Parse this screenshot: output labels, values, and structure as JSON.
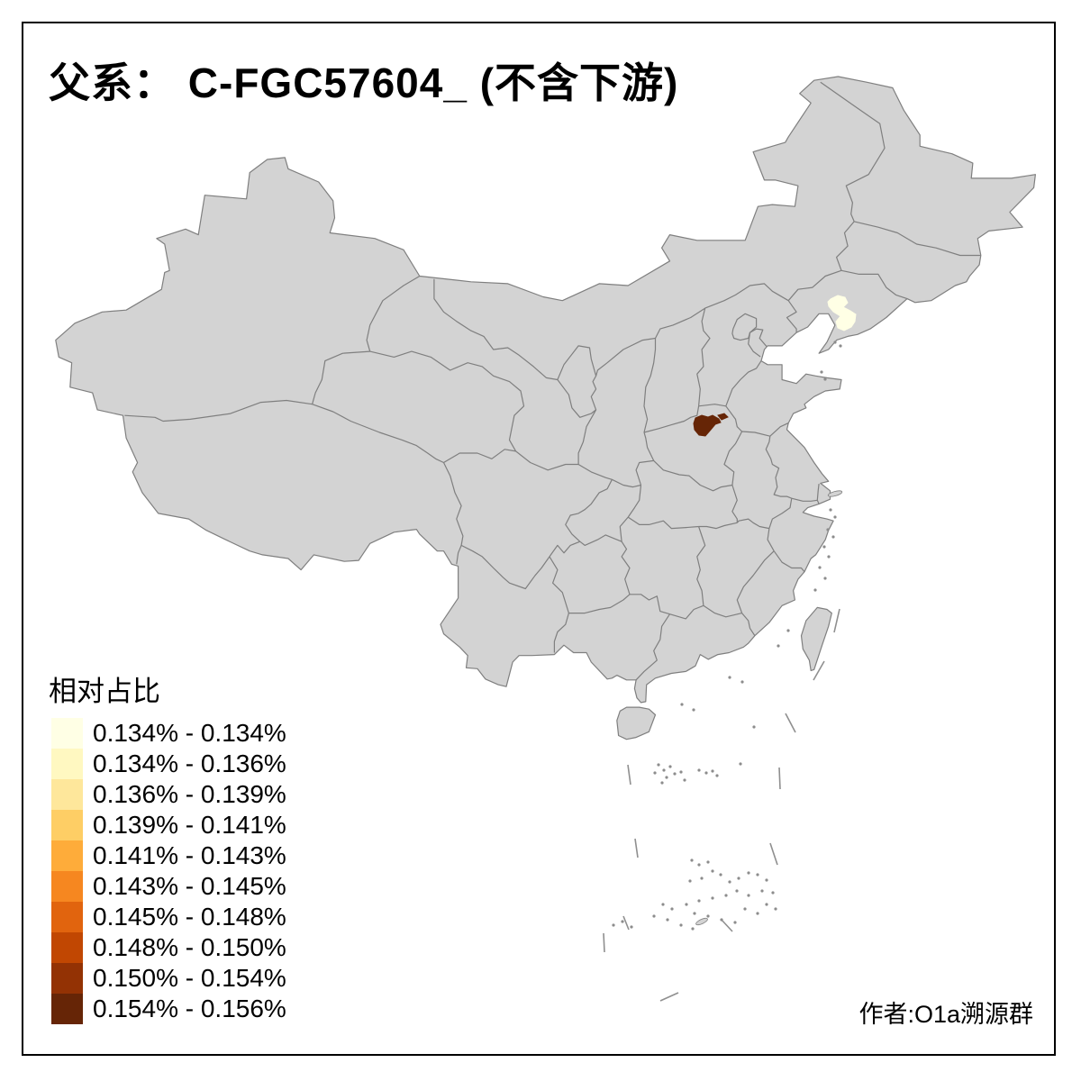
{
  "title": "父系： C-FGC57604_ (不含下游)",
  "attribution": "作者:O1a溯源群",
  "legend": {
    "title": "相对占比",
    "items": [
      {
        "label": "0.134% - 0.134%",
        "color": "#FFFFE5"
      },
      {
        "label": "0.134% - 0.136%",
        "color": "#FFF8C1"
      },
      {
        "label": "0.136% - 0.139%",
        "color": "#FEE79B"
      },
      {
        "label": "0.139% - 0.141%",
        "color": "#FECE65"
      },
      {
        "label": "0.141% - 0.143%",
        "color": "#FEAC3A"
      },
      {
        "label": "0.143% - 0.145%",
        "color": "#F68720"
      },
      {
        "label": "0.145% - 0.148%",
        "color": "#E1640E"
      },
      {
        "label": "0.148% - 0.150%",
        "color": "#C14702"
      },
      {
        "label": "0.150% - 0.154%",
        "color": "#933204"
      },
      {
        "label": "0.154% - 0.156%",
        "color": "#662506"
      }
    ]
  },
  "map": {
    "background": "#FFFFFF",
    "land_fill": "#D3D3D3",
    "border_stroke": "#7F7F7F",
    "island_dot_color": "#8C8C8C",
    "dash_line_color": "#8F8F8F",
    "frame_color": "#000000",
    "highlights": [
      {
        "name": "liaoning-central-region",
        "value_range": "0.134% - 0.134%",
        "color": "#FFFFE5"
      },
      {
        "name": "shanxi-henan-border-region",
        "value_range": "0.154% - 0.156%",
        "color": "#662506"
      }
    ]
  },
  "chart_data": {
    "type": "choropleth_map",
    "title": "父系： C-FGC57604_ (不含下游)",
    "legend_title": "相对占比",
    "bins": [
      {
        "range": "0.134% - 0.134%",
        "color": "#FFFFE5"
      },
      {
        "range": "0.134% - 0.136%",
        "color": "#FFF8C1"
      },
      {
        "range": "0.136% - 0.139%",
        "color": "#FEE79B"
      },
      {
        "range": "0.139% - 0.141%",
        "color": "#FECE65"
      },
      {
        "range": "0.141% - 0.143%",
        "color": "#FEAC3A"
      },
      {
        "range": "0.143% - 0.145%",
        "color": "#F68720"
      },
      {
        "range": "0.145% - 0.148%",
        "color": "#E1640E"
      },
      {
        "range": "0.148% - 0.150%",
        "color": "#C14702"
      },
      {
        "range": "0.150% - 0.154%",
        "color": "#933204"
      },
      {
        "range": "0.154% - 0.156%",
        "color": "#662506"
      }
    ],
    "highlighted_regions": [
      {
        "map_position": "central Liaoning (northeast China)",
        "value_range": "0.134% - 0.134%",
        "color": "#FFFFE5"
      },
      {
        "map_position": "Shanxi/Henan border area (north-central China)",
        "value_range": "0.154% - 0.156%",
        "color": "#662506"
      }
    ],
    "base_region": "China province-level map, uncolored provinces gray"
  }
}
